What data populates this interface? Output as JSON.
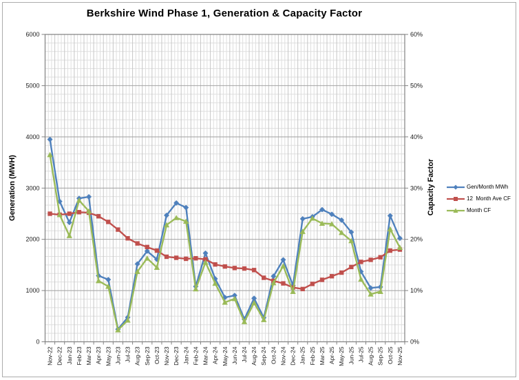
{
  "frame": {
    "border_color": "#ababab"
  },
  "chart": {
    "title": "Berkshire Wind Phase 1, Generation & Capacity Factor"
  },
  "chart_data": {
    "type": "line",
    "title": "Berkshire Wind Phase 1, Generation & Capacity Factor",
    "grid": true,
    "legend_position": "right",
    "categories": [
      "Nov-22",
      "Dec-22",
      "Jan-23",
      "Feb-23",
      "Mar-23",
      "Apr-23",
      "May-23",
      "Jun-23",
      "Jul-23",
      "Aug-23",
      "Sep-23",
      "Oct-23",
      "Nov-23",
      "Dec-23",
      "Jan-24",
      "Feb-24",
      "Mar-24",
      "Apr-24",
      "May-24",
      "Jun-24",
      "Jul-24",
      "Aug-24",
      "Sep-24",
      "Oct-24",
      "Nov-24",
      "Dec-24",
      "Jan-25",
      "Feb-25",
      "Mar-25",
      "Apr-25",
      "May-25",
      "Jun-25",
      "Jul-25",
      "Aug-25",
      "Sep-25",
      "Oct-25",
      "Nov-25"
    ],
    "left_axis": {
      "label": "Generation (MWH)",
      "min": 0,
      "max": 6000,
      "major": 1000,
      "minor_per_major": 6,
      "tick_labels": [
        "0",
        "1000",
        "2000",
        "3000",
        "4000",
        "5000",
        "6000"
      ]
    },
    "right_axis": {
      "label": "Capacity Factor",
      "min": 0,
      "max": 60,
      "major": 10,
      "tick_labels": [
        "0%",
        "10%",
        "20%",
        "30%",
        "40%",
        "50%",
        "60%"
      ]
    },
    "series": [
      {
        "name": "Gen/Month MWh",
        "axis": "left",
        "color": "#4F81BD",
        "marker": "diamond",
        "values": [
          3950,
          2740,
          2330,
          2800,
          2830,
          1290,
          1215,
          245,
          475,
          1520,
          1770,
          1610,
          2470,
          2710,
          2620,
          1080,
          1730,
          1230,
          865,
          905,
          440,
          850,
          470,
          1280,
          1600,
          1100,
          2400,
          2440,
          2580,
          2490,
          2375,
          2140,
          1370,
          1050,
          1070,
          2460,
          2020
        ]
      },
      {
        "name": "12  Month Ave CF",
        "axis": "right",
        "color": "#C0504D",
        "marker": "square",
        "values": [
          25.0,
          24.8,
          25.0,
          25.3,
          25.2,
          24.5,
          23.4,
          21.9,
          20.2,
          19.2,
          18.5,
          17.8,
          16.6,
          16.4,
          16.2,
          16.3,
          16.1,
          15.1,
          14.7,
          14.4,
          14.3,
          14.0,
          12.5,
          11.9,
          11.4,
          10.6,
          10.3,
          11.3,
          12.1,
          12.8,
          13.5,
          14.6,
          15.6,
          16.0,
          16.5,
          17.8,
          18.0
        ]
      },
      {
        "name": "Month CF",
        "axis": "right",
        "color": "#9BBB59",
        "marker": "triangle",
        "values": [
          36.5,
          24.8,
          20.7,
          27.6,
          25.5,
          11.9,
          10.8,
          2.3,
          4.2,
          13.7,
          16.3,
          14.5,
          22.8,
          24.2,
          23.5,
          10.3,
          15.5,
          11.4,
          7.7,
          8.4,
          3.9,
          7.6,
          4.3,
          11.5,
          14.8,
          9.8,
          21.5,
          24.1,
          23.1,
          23.0,
          21.3,
          19.7,
          12.2,
          9.3,
          9.8,
          22.0,
          18.4
        ]
      }
    ],
    "grid_colors": {
      "minor": "#dedede",
      "major_h": "#a3a3a3",
      "major_v": "#c6c6c6",
      "axis": "#808080"
    }
  },
  "legend": {
    "items": [
      {
        "label": "Gen/Month MWh"
      },
      {
        "label": "12  Month Ave CF"
      },
      {
        "label": "Month CF"
      }
    ]
  }
}
